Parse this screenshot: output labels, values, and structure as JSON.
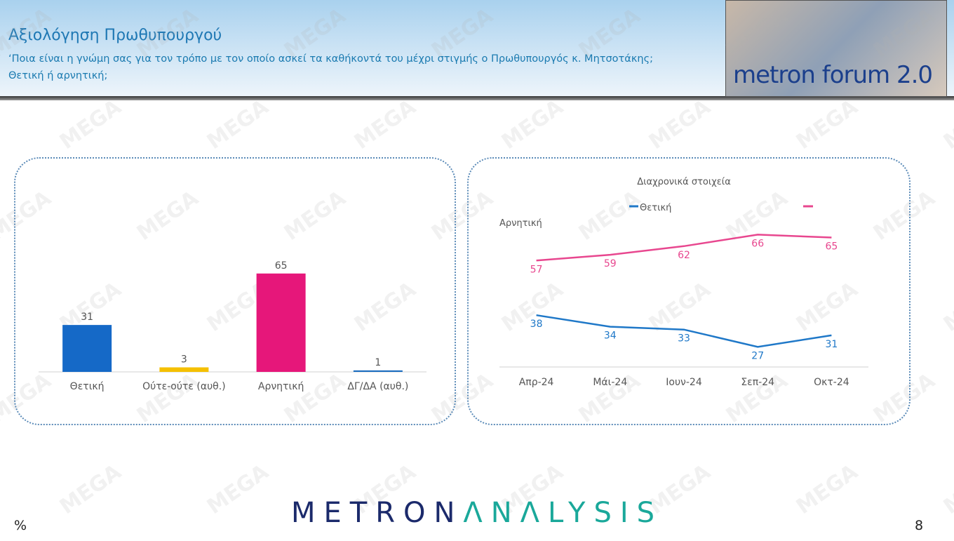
{
  "header": {
    "title": "Αξιολόγηση Πρωθυπουργού",
    "question": "‘Ποια είναι η γνώμη σας για τον τρόπο με τον οποίο ασκεί τα καθήκοντά του μέχρι στιγμής ο Πρωθυπουργός κ. Μητσοτάκης; Θετική ή αρνητική;",
    "logo": "metron forum 2.0"
  },
  "watermark": "MEGA",
  "footer": {
    "brand_part1": "METRON",
    "brand_part2": "ΛNΛLYSIS",
    "unit": "%",
    "page_number": "8"
  },
  "colors": {
    "positive": "#1569c7",
    "neutral": "#f5c000",
    "negative": "#e6177a",
    "dk": "#1f6fc0"
  },
  "chart_data": [
    {
      "type": "bar",
      "categories": [
        "Θετική",
        "Ούτε-ούτε (αυθ.)",
        "Αρνητική",
        "ΔΓ/ΔΑ (αυθ.)"
      ],
      "values": [
        31,
        3,
        65,
        1
      ],
      "colors": [
        "#1569c7",
        "#f5c000",
        "#e6177a",
        "#1f6fc0"
      ],
      "ylim": [
        0,
        70
      ],
      "grid": false
    },
    {
      "type": "line",
      "title": "Διαχρονικά στοιχεία",
      "categories": [
        "Απρ-24",
        "Μάι-24",
        "Ιουν-24",
        "Σεπ-24",
        "Οκτ-24"
      ],
      "series": [
        {
          "name": "Θετική",
          "values": [
            38,
            34,
            33,
            27,
            31
          ],
          "color": "#1f78c8"
        },
        {
          "name": "Αρνητική",
          "values": [
            57,
            59,
            62,
            66,
            65
          ],
          "color": "#e8478f"
        }
      ],
      "ylim": [
        20,
        70
      ],
      "grid": false,
      "legend": "top"
    }
  ]
}
